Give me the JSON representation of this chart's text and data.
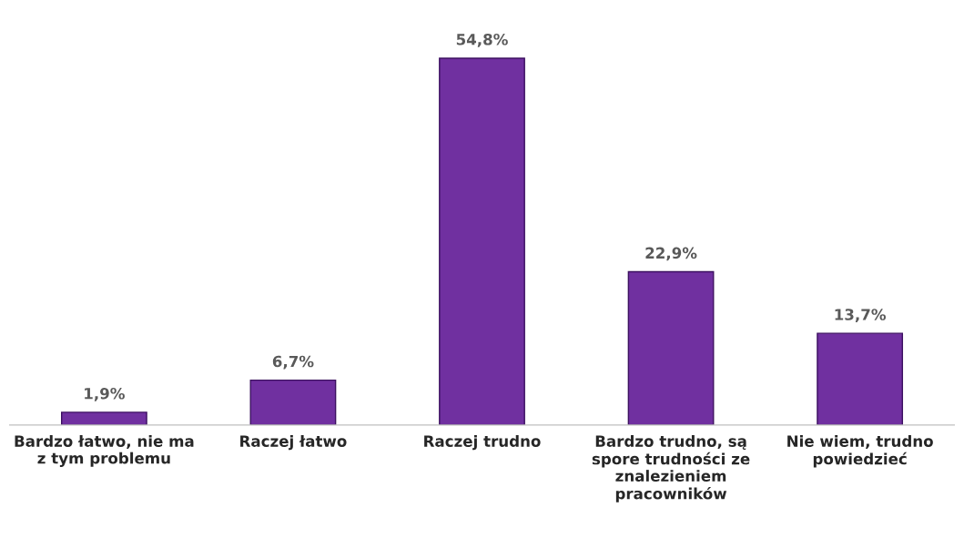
{
  "chart_data": {
    "type": "bar",
    "categories": [
      "Bardzo łatwo, nie ma z tym problemu",
      "Raczej łatwo",
      "Raczej trudno",
      "Bardzo trudno, są spore trudności ze znalezieniem pracowników",
      "Nie wiem, trudno powiedzieć"
    ],
    "values": [
      1.9,
      6.7,
      54.8,
      22.9,
      13.7
    ],
    "value_labels": [
      "1,9%",
      "6,7%",
      "54,8%",
      "22,9%",
      "13,7%"
    ],
    "color": "#7030a0",
    "grid": false,
    "legend": false
  }
}
